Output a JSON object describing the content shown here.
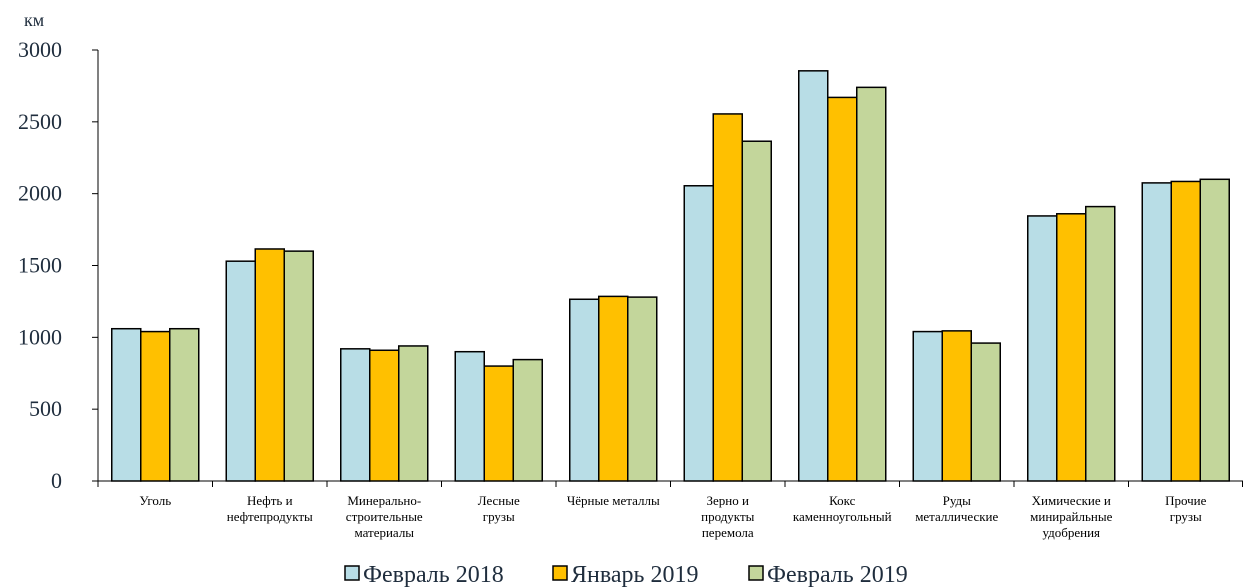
{
  "chart_data": {
    "type": "bar",
    "unit_label": "км",
    "ylim": [
      0,
      3000
    ],
    "yticks": [
      "0",
      "500",
      "1000",
      "1500",
      "2000",
      "2500",
      "3000"
    ],
    "yticks_values": [
      0,
      500,
      1000,
      1500,
      2000,
      2500,
      3000
    ],
    "grid": false,
    "legend_position": "bottom",
    "categories": [
      [
        "Уголь"
      ],
      [
        "Нефть и",
        "нефтепродукты"
      ],
      [
        "Минерально-",
        "строительные",
        "материалы"
      ],
      [
        "Лесные",
        "грузы"
      ],
      [
        "Чёрные металлы"
      ],
      [
        "Зерно и",
        "продукты",
        "перемола"
      ],
      [
        "Кокс",
        "каменноугольный"
      ],
      [
        "Руды",
        "металлические"
      ],
      [
        "Химические и",
        "минирайльные",
        "удобрения"
      ],
      [
        "Прочие",
        "грузы"
      ]
    ],
    "series": [
      {
        "name": "Февраль 2018",
        "color": "#b8dde6",
        "values": [
          1060,
          1530,
          920,
          900,
          1265,
          2055,
          2855,
          1040,
          1845,
          2075
        ]
      },
      {
        "name": "Январь 2019",
        "color": "#ffc000",
        "values": [
          1040,
          1615,
          910,
          800,
          1285,
          2555,
          2670,
          1045,
          1860,
          2085
        ]
      },
      {
        "name": "Февраль 2019",
        "color": "#c3d69b",
        "values": [
          1060,
          1600,
          940,
          845,
          1280,
          2365,
          2740,
          960,
          1910,
          2100
        ]
      }
    ]
  }
}
